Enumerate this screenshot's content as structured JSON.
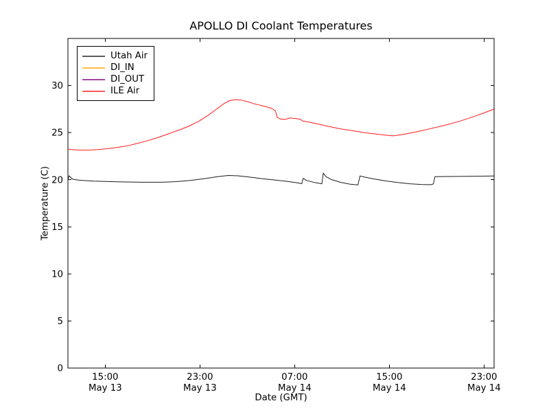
{
  "chart_data": {
    "type": "line",
    "title": "APOLLO DI Coolant Temperatures",
    "xlabel": "Date (GMT)",
    "ylabel": "Temperature (C)",
    "x_unit": "hours since May 13 00:00 GMT",
    "xlim": [
      11.85,
      47.85
    ],
    "ylim": [
      0,
      35
    ],
    "grid": false,
    "background": "#ffffff",
    "axes_color": "#000000",
    "legend": {
      "position": "upper left",
      "entries": [
        "Utah Air",
        "DI_IN",
        "DI_OUT",
        "ILE Air"
      ]
    },
    "yticks": [
      {
        "value": 0,
        "label": "0"
      },
      {
        "value": 5,
        "label": "5"
      },
      {
        "value": 10,
        "label": "10"
      },
      {
        "value": 15,
        "label": "15"
      },
      {
        "value": 20,
        "label": "20"
      },
      {
        "value": 25,
        "label": "25"
      },
      {
        "value": 30,
        "label": "30"
      }
    ],
    "xticks": [
      {
        "value": 15,
        "time": "15:00",
        "date": "May 13"
      },
      {
        "value": 23,
        "time": "23:00",
        "date": "May 13"
      },
      {
        "value": 31,
        "time": "07:00",
        "date": "May 14"
      },
      {
        "value": 39,
        "time": "15:00",
        "date": "May 14"
      },
      {
        "value": 47,
        "time": "23:00",
        "date": "May 14"
      }
    ],
    "series": [
      {
        "name": "Utah Air",
        "color": "#1a1a1a",
        "points": [
          [
            11.85,
            20.0
          ],
          [
            11.95,
            20.42
          ],
          [
            12.25,
            20.05
          ],
          [
            12.8,
            19.95
          ],
          [
            14.0,
            19.85
          ],
          [
            16.0,
            19.78
          ],
          [
            18.0,
            19.73
          ],
          [
            19.8,
            19.73
          ],
          [
            21.0,
            19.8
          ],
          [
            22.2,
            19.93
          ],
          [
            23.4,
            20.12
          ],
          [
            24.5,
            20.32
          ],
          [
            25.4,
            20.45
          ],
          [
            26.2,
            20.42
          ],
          [
            27.2,
            20.28
          ],
          [
            28.2,
            20.12
          ],
          [
            29.3,
            19.97
          ],
          [
            30.3,
            19.83
          ],
          [
            31.2,
            19.68
          ],
          [
            31.6,
            19.58
          ],
          [
            31.72,
            20.15
          ],
          [
            32.0,
            19.92
          ],
          [
            32.7,
            19.7
          ],
          [
            33.3,
            19.56
          ],
          [
            33.42,
            20.7
          ],
          [
            33.65,
            20.32
          ],
          [
            34.1,
            20.02
          ],
          [
            34.9,
            19.72
          ],
          [
            35.7,
            19.52
          ],
          [
            36.35,
            19.45
          ],
          [
            36.52,
            20.4
          ],
          [
            36.9,
            20.28
          ],
          [
            37.7,
            20.08
          ],
          [
            38.7,
            19.87
          ],
          [
            39.7,
            19.7
          ],
          [
            40.7,
            19.57
          ],
          [
            41.7,
            19.5
          ],
          [
            42.5,
            19.47
          ],
          [
            42.72,
            19.55
          ],
          [
            42.85,
            20.33
          ],
          [
            43.5,
            20.34
          ],
          [
            45.0,
            20.35
          ],
          [
            46.5,
            20.37
          ],
          [
            47.85,
            20.4
          ]
        ]
      },
      {
        "name": "DI_IN",
        "color": "#ffa500",
        "points": []
      },
      {
        "name": "DI_OUT",
        "color": "#800080",
        "points": []
      },
      {
        "name": "ILE Air",
        "color": "#ff1a1a",
        "points": [
          [
            11.85,
            23.25
          ],
          [
            12.4,
            23.17
          ],
          [
            13.1,
            23.13
          ],
          [
            13.8,
            23.15
          ],
          [
            14.5,
            23.22
          ],
          [
            15.2,
            23.3
          ],
          [
            16.0,
            23.42
          ],
          [
            16.9,
            23.6
          ],
          [
            17.7,
            23.85
          ],
          [
            18.6,
            24.15
          ],
          [
            19.5,
            24.5
          ],
          [
            20.4,
            24.9
          ],
          [
            21.3,
            25.3
          ],
          [
            22.1,
            25.7
          ],
          [
            22.9,
            26.2
          ],
          [
            23.7,
            26.85
          ],
          [
            24.4,
            27.5
          ],
          [
            25.0,
            28.05
          ],
          [
            25.5,
            28.4
          ],
          [
            26.0,
            28.5
          ],
          [
            26.5,
            28.45
          ],
          [
            27.0,
            28.3
          ],
          [
            27.6,
            28.05
          ],
          [
            28.3,
            27.85
          ],
          [
            29.0,
            27.6
          ],
          [
            29.35,
            27.35
          ],
          [
            29.55,
            26.6
          ],
          [
            29.8,
            26.45
          ],
          [
            30.2,
            26.4
          ],
          [
            30.6,
            26.55
          ],
          [
            31.1,
            26.5
          ],
          [
            31.5,
            26.42
          ],
          [
            31.65,
            26.25
          ],
          [
            32.3,
            26.1
          ],
          [
            33.0,
            25.9
          ],
          [
            33.9,
            25.65
          ],
          [
            34.9,
            25.4
          ],
          [
            35.9,
            25.2
          ],
          [
            36.9,
            25.0
          ],
          [
            37.9,
            24.85
          ],
          [
            38.8,
            24.72
          ],
          [
            39.3,
            24.65
          ],
          [
            40.0,
            24.78
          ],
          [
            40.9,
            24.98
          ],
          [
            41.9,
            25.25
          ],
          [
            42.9,
            25.55
          ],
          [
            43.9,
            25.85
          ],
          [
            44.9,
            26.2
          ],
          [
            45.9,
            26.6
          ],
          [
            46.9,
            27.05
          ],
          [
            47.85,
            27.5
          ]
        ]
      }
    ]
  }
}
